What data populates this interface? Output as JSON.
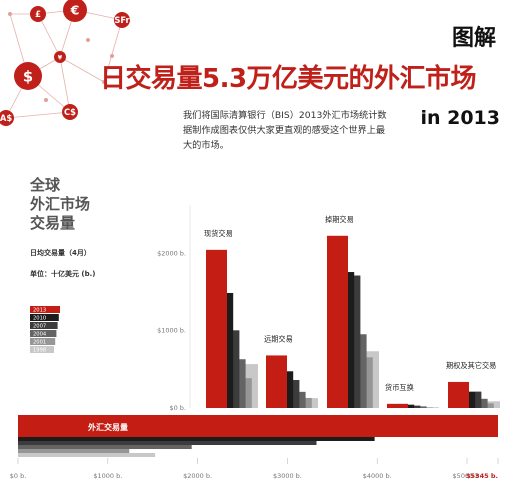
{
  "header": {
    "tag": "图解",
    "title": "日交易量5.3万亿美元的外汇市场",
    "year": "in 2013",
    "description": "我们将国际清算银行（BIS）2013外汇市场统计数据制作成图表仅供大家更直观的感受这个世界上最大的市场。"
  },
  "side": {
    "title_lines": [
      "全球",
      "外汇市场",
      "交易量"
    ],
    "subtitle": "日均交易量（4月）",
    "unit": "单位：十亿美元 (b.)"
  },
  "currency_icons": [
    "£",
    "€",
    "SFr",
    "¥",
    "$",
    "A$",
    "C$"
  ],
  "colors": {
    "accent": "#c0201a",
    "red_bar": "#c41e14"
  },
  "chart_data": {
    "type": "bar",
    "years": [
      "2013",
      "2010",
      "2007",
      "2004",
      "2001",
      "1998"
    ],
    "year_colors": [
      "#c41e14",
      "#1c1c1c",
      "#3c3c3c",
      "#646464",
      "#969696",
      "#c8c8c8"
    ],
    "categories": [
      "现货交易",
      "远期交易",
      "掉期交易",
      "货币互换",
      "期权及其它交易"
    ],
    "series": [
      {
        "name": "2013",
        "values": [
          2046,
          680,
          2228,
          54,
          337
        ]
      },
      {
        "name": "2010",
        "values": [
          1488,
          475,
          1759,
          43,
          207
        ]
      },
      {
        "name": "2007",
        "values": [
          1005,
          362,
          1714,
          31,
          212
        ]
      },
      {
        "name": "2004",
        "values": [
          631,
          209,
          954,
          21,
          119
        ]
      },
      {
        "name": "2001",
        "values": [
          386,
          130,
          656,
          7,
          60
        ]
      },
      {
        "name": "1998",
        "values": [
          568,
          128,
          734,
          10,
          87
        ]
      }
    ],
    "y_ticks": [
      {
        "value": 0,
        "label": "$0 b."
      },
      {
        "value": 1000,
        "label": "$1000 b."
      },
      {
        "value": 2000,
        "label": "$2000 b."
      }
    ],
    "total": {
      "label": "外汇交易量",
      "values": {
        "2013": 5345,
        "2010": 3971,
        "2007": 3324,
        "2004": 1934,
        "2001": 1239,
        "1998": 1527
      }
    },
    "x_ticks": [
      {
        "value": 0,
        "label": "$0 b."
      },
      {
        "value": 1000,
        "label": "$1000 b."
      },
      {
        "value": 2000,
        "label": "$2000 b."
      },
      {
        "value": 3000,
        "label": "$3000 b."
      },
      {
        "value": 4000,
        "label": "$4000 b."
      },
      {
        "value": 5000,
        "label": "$5000 b."
      },
      {
        "value": 5345,
        "label": "$5345 b.",
        "highlight": true
      }
    ],
    "ylim": [
      0,
      2300
    ],
    "xlim": [
      0,
      5345
    ]
  }
}
